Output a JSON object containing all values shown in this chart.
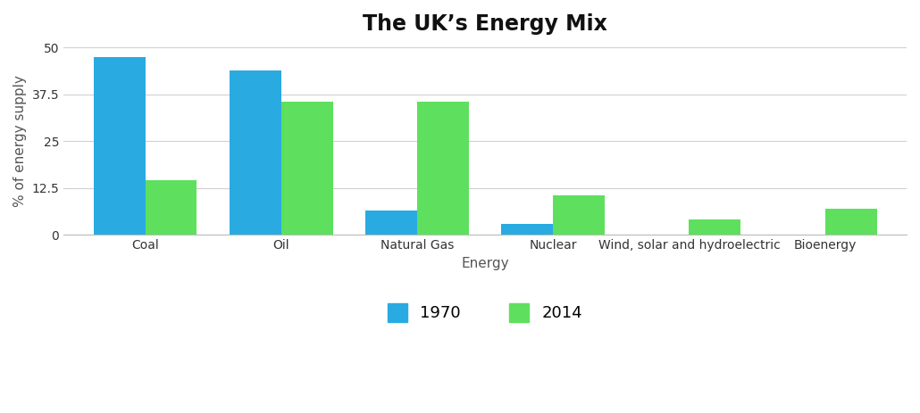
{
  "title": "The UK’s Energy Mix",
  "categories": [
    "Coal",
    "Oil",
    "Natural Gas",
    "Nuclear",
    "Wind, solar and hydroelectric",
    "Bioenergy"
  ],
  "values_1970": [
    47.5,
    44.0,
    6.5,
    3.0,
    0,
    0
  ],
  "values_2014": [
    14.5,
    35.5,
    35.5,
    10.5,
    4.0,
    7.0
  ],
  "color_1970": "#29ABE2",
  "color_2014": "#5EE05E",
  "ylabel": "% of energy supply",
  "xlabel": "Energy",
  "ylim": [
    0,
    50
  ],
  "yticks": [
    0,
    12.5,
    25,
    37.5,
    50
  ],
  "ytick_labels": [
    "0",
    "12.5",
    "25",
    "37.5",
    "50"
  ],
  "legend_labels": [
    "1970",
    "2014"
  ],
  "background_color": "#ffffff",
  "title_fontsize": 17,
  "axis_label_fontsize": 11,
  "tick_fontsize": 10,
  "legend_fontsize": 13,
  "bar_width": 0.38
}
